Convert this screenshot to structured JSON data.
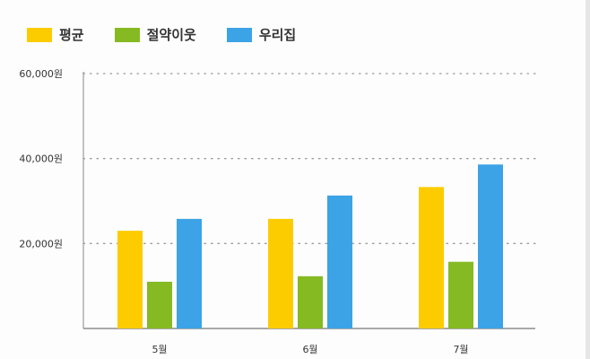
{
  "chart_data": {
    "type": "bar",
    "categories": [
      "5월",
      "6월",
      "7월"
    ],
    "series": [
      {
        "name": "평균",
        "color": "#fccc00",
        "values": [
          23000,
          25800,
          33300
        ]
      },
      {
        "name": "절약이웃",
        "color": "#85ba22",
        "values": [
          11000,
          12300,
          15700
        ]
      },
      {
        "name": "우리집",
        "color": "#3ca3e6",
        "values": [
          25800,
          31300,
          38600
        ]
      }
    ],
    "yticks": [
      {
        "value": 20000,
        "label": "20,000원"
      },
      {
        "value": 40000,
        "label": "40,000원"
      },
      {
        "value": 60000,
        "label": "60,000원"
      }
    ],
    "ylim": [
      0,
      60000
    ],
    "grid": true,
    "legend_position": "top-left",
    "title": "",
    "xlabel": "",
    "ylabel": ""
  }
}
